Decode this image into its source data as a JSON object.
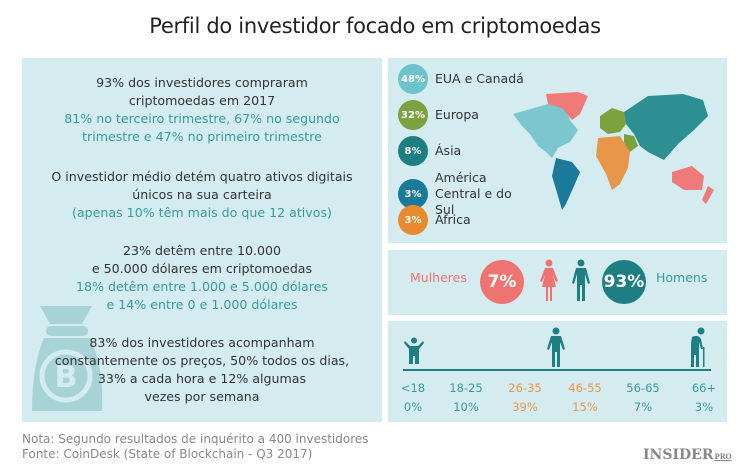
{
  "title": "Perfil do investidor focado em criptomoedas",
  "left": {
    "b1": {
      "l1": "93% dos investidores compraram",
      "l2": "criptomoedas em 2017",
      "l3": "81% no terceiro trimestre, 67% no segundo",
      "l4": "trimestre e 47% no primeiro trimestre"
    },
    "b2": {
      "l1": "O investidor médio detém quatro ativos digitais",
      "l2": "únicos na sua carteira",
      "l3": "(apenas 10% têm mais do que 12 ativos)"
    },
    "b3": {
      "l1": "23% detêm entre 10.000",
      "l2": "e 50.000 dólares em criptomoedas",
      "l3": "18% detêm entre 1.000 e 5.000 dólares",
      "l4": "e 14% entre 0 e 1.000 dólares"
    },
    "b4": {
      "l1": "83% dos investidores acompanham",
      "l2": "constantemente os preços, 50% todos os dias,",
      "l3": "33% a cada hora e 12% algumas",
      "l4": "vezes por semana"
    }
  },
  "regions": [
    {
      "pct": "48%",
      "label": "EUA e Canadá",
      "color": "#6cc3cb"
    },
    {
      "pct": "32%",
      "label": "Europa",
      "color": "#7ba23f"
    },
    {
      "pct": "8%",
      "label": "Ásia",
      "color": "#1d7f80"
    },
    {
      "pct": "3%",
      "label": "América Central e do Sul",
      "color": "#1b7a99"
    },
    {
      "pct": "3%",
      "label": "África",
      "color": "#e88a2e"
    }
  ],
  "gender": {
    "women_label": "Mulheres",
    "women_pct": "7%",
    "men_pct": "93%",
    "men_label": "Homens",
    "women_color": "#ef7471",
    "men_color": "#1e7f83"
  },
  "age": {
    "groups": [
      {
        "range": "<18",
        "pct": "0%",
        "color": "#3a9a9a"
      },
      {
        "range": "18-25",
        "pct": "10%",
        "color": "#3a9a9a"
      },
      {
        "range": "26-35",
        "pct": "39%",
        "color": "#e9964a"
      },
      {
        "range": "46-55",
        "pct": "15%",
        "color": "#e9964a"
      },
      {
        "range": "56-65",
        "pct": "7%",
        "color": "#3a9a9a"
      },
      {
        "range": "66+",
        "pct": "3%",
        "color": "#3a9a9a"
      }
    ]
  },
  "footer": {
    "note": "Nota: Segundo resultados de inquérito a 400 investidores",
    "source": "Fonte: CoinDesk (State of Blockchain - Q3 2017)"
  },
  "logo": {
    "main": "INSIDER",
    "sub": "PRO"
  }
}
